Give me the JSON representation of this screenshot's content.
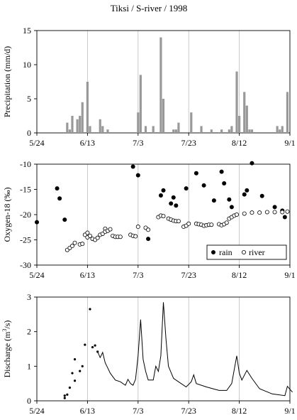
{
  "title": "Tiksi / S-river / 1998",
  "x_tick_labels": [
    "5/24",
    "6/13",
    "7/3",
    "7/23",
    "8/12",
    "9/1"
  ],
  "chart_data": [
    {
      "type": "bar",
      "ylabel": "Precipitation  (mm/d)",
      "ylim": [
        0,
        15
      ],
      "y_ticks": [
        "0",
        "5",
        "10",
        "15"
      ],
      "grid": "vertical",
      "x_start": "1998-05-24",
      "x_end": "1998-09-01",
      "bar_color": "#999999",
      "bars": [
        {
          "date": "1998-06-05",
          "value": 1.5
        },
        {
          "date": "1998-06-06",
          "value": 0.5
        },
        {
          "date": "1998-06-07",
          "value": 2.5
        },
        {
          "date": "1998-06-09",
          "value": 2.0
        },
        {
          "date": "1998-06-10",
          "value": 2.5
        },
        {
          "date": "1998-06-11",
          "value": 4.5
        },
        {
          "date": "1998-06-13",
          "value": 7.5
        },
        {
          "date": "1998-06-14",
          "value": 1.0
        },
        {
          "date": "1998-06-18",
          "value": 2.0
        },
        {
          "date": "1998-06-19",
          "value": 1.0
        },
        {
          "date": "1998-06-21",
          "value": 0.5
        },
        {
          "date": "1998-07-03",
          "value": 3.0
        },
        {
          "date": "1998-07-04",
          "value": 8.5
        },
        {
          "date": "1998-07-06",
          "value": 1.0
        },
        {
          "date": "1998-07-09",
          "value": 1.0
        },
        {
          "date": "1998-07-12",
          "value": 14.0
        },
        {
          "date": "1998-07-13",
          "value": 5.0
        },
        {
          "date": "1998-07-17",
          "value": 0.5
        },
        {
          "date": "1998-07-18",
          "value": 0.5
        },
        {
          "date": "1998-07-19",
          "value": 1.5
        },
        {
          "date": "1998-07-24",
          "value": 3.0
        },
        {
          "date": "1998-07-28",
          "value": 1.0
        },
        {
          "date": "1998-08-01",
          "value": 0.5
        },
        {
          "date": "1998-08-05",
          "value": 0.5
        },
        {
          "date": "1998-08-08",
          "value": 0.5
        },
        {
          "date": "1998-08-09",
          "value": 1.0
        },
        {
          "date": "1998-08-11",
          "value": 9.0
        },
        {
          "date": "1998-08-12",
          "value": 2.5
        },
        {
          "date": "1998-08-14",
          "value": 6.0
        },
        {
          "date": "1998-08-15",
          "value": 4.0
        },
        {
          "date": "1998-08-16",
          "value": 0.5
        },
        {
          "date": "1998-08-17",
          "value": 0.5
        },
        {
          "date": "1998-08-27",
          "value": 1.0
        },
        {
          "date": "1998-08-28",
          "value": 0.5
        },
        {
          "date": "1998-08-29",
          "value": 1.0
        },
        {
          "date": "1998-08-31",
          "value": 6.0
        }
      ]
    },
    {
      "type": "scatter",
      "ylabel": "Oxygen-18  (‰)",
      "ylim": [
        -30,
        -10
      ],
      "y_ticks": [
        "-10",
        "-15",
        "-20",
        "-25",
        "-30"
      ],
      "grid": "vertical",
      "legend_position": "bottom-right",
      "series": [
        {
          "name": "rain",
          "marker": "filled-circle",
          "points": [
            [
              "1998-05-24",
              -21.5
            ],
            [
              "1998-06-01",
              -14.8
            ],
            [
              "1998-06-02",
              -16.8
            ],
            [
              "1998-06-04",
              -21.0
            ],
            [
              "1998-07-01",
              -10.5
            ],
            [
              "1998-07-03",
              -12.2
            ],
            [
              "1998-07-07",
              -24.8
            ],
            [
              "1998-07-12",
              -16.2
            ],
            [
              "1998-07-13",
              -15.2
            ],
            [
              "1998-07-16",
              -17.8
            ],
            [
              "1998-07-17",
              -16.6
            ],
            [
              "1998-07-18",
              -18.2
            ],
            [
              "1998-07-22",
              -14.8
            ],
            [
              "1998-07-26",
              -11.8
            ],
            [
              "1998-07-29",
              -14.2
            ],
            [
              "1998-08-02",
              -17.2
            ],
            [
              "1998-08-05",
              -11.5
            ],
            [
              "1998-08-06",
              -13.8
            ],
            [
              "1998-08-08",
              -17.0
            ],
            [
              "1998-08-09",
              -18.5
            ],
            [
              "1998-08-14",
              -16.0
            ],
            [
              "1998-08-15",
              -15.2
            ],
            [
              "1998-08-17",
              -9.8
            ],
            [
              "1998-08-21",
              -16.3
            ],
            [
              "1998-08-26",
              -18.5
            ],
            [
              "1998-08-29",
              -19.2
            ],
            [
              "1998-08-30",
              -20.5
            ]
          ]
        },
        {
          "name": "river",
          "marker": "open-circle",
          "points": [
            [
              "1998-06-05",
              -27.0
            ],
            [
              "1998-06-06",
              -26.6
            ],
            [
              "1998-06-07",
              -26.2
            ],
            [
              "1998-06-08",
              -25.6
            ],
            [
              "1998-06-10",
              -25.9
            ],
            [
              "1998-06-11",
              -25.8
            ],
            [
              "1998-06-12",
              -24.0
            ],
            [
              "1998-06-13",
              -23.6
            ],
            [
              "1998-06-13",
              -24.5
            ],
            [
              "1998-06-14",
              -24.2
            ],
            [
              "1998-06-15",
              -24.8
            ],
            [
              "1998-06-16",
              -25.0
            ],
            [
              "1998-06-17",
              -24.6
            ],
            [
              "1998-06-18",
              -24.0
            ],
            [
              "1998-06-19",
              -23.8
            ],
            [
              "1998-06-20",
              -22.8
            ],
            [
              "1998-06-20",
              -23.4
            ],
            [
              "1998-06-21",
              -23.2
            ],
            [
              "1998-06-22",
              -22.9
            ],
            [
              "1998-06-23",
              -24.2
            ],
            [
              "1998-06-24",
              -24.4
            ],
            [
              "1998-06-25",
              -24.4
            ],
            [
              "1998-06-26",
              -24.4
            ],
            [
              "1998-06-30",
              -24.0
            ],
            [
              "1998-07-01",
              -24.2
            ],
            [
              "1998-07-02",
              -24.3
            ],
            [
              "1998-07-03",
              -22.4
            ],
            [
              "1998-07-06",
              -22.6
            ],
            [
              "1998-07-07",
              -23.0
            ],
            [
              "1998-07-11",
              -20.5
            ],
            [
              "1998-07-12",
              -20.2
            ],
            [
              "1998-07-13",
              -20.3
            ],
            [
              "1998-07-15",
              -20.8
            ],
            [
              "1998-07-16",
              -21.0
            ],
            [
              "1998-07-17",
              -21.2
            ],
            [
              "1998-07-18",
              -21.3
            ],
            [
              "1998-07-19",
              -21.3
            ],
            [
              "1998-07-21",
              -22.4
            ],
            [
              "1998-07-22",
              -22.2
            ],
            [
              "1998-07-23",
              -21.8
            ],
            [
              "1998-07-26",
              -21.8
            ],
            [
              "1998-07-27",
              -21.9
            ],
            [
              "1998-07-28",
              -22.0
            ],
            [
              "1998-07-29",
              -22.2
            ],
            [
              "1998-07-30",
              -22.1
            ],
            [
              "1998-07-31",
              -22.0
            ],
            [
              "1998-08-01",
              -22.0
            ],
            [
              "1998-08-04",
              -21.9
            ],
            [
              "1998-08-05",
              -22.1
            ],
            [
              "1998-08-06",
              -21.9
            ],
            [
              "1998-08-07",
              -21.6
            ],
            [
              "1998-08-08",
              -20.8
            ],
            [
              "1998-08-09",
              -20.5
            ],
            [
              "1998-08-10",
              -20.2
            ],
            [
              "1998-08-11",
              -20.0
            ],
            [
              "1998-08-14",
              -19.8
            ],
            [
              "1998-08-17",
              -19.6
            ],
            [
              "1998-08-20",
              -19.6
            ],
            [
              "1998-08-23",
              -19.5
            ],
            [
              "1998-08-26",
              -19.5
            ],
            [
              "1998-08-29",
              -19.5
            ],
            [
              "1998-08-31",
              -19.4
            ]
          ]
        }
      ]
    },
    {
      "type": "line",
      "ylabel": "Discharge  (m3/s)",
      "ylim": [
        0,
        3
      ],
      "y_ticks": [
        "0",
        "1",
        "2",
        "3"
      ],
      "grid": "vertical",
      "series": [
        {
          "name": "",
          "style": "dots",
          "points": [
            [
              "1998-06-04",
              0.08
            ],
            [
              "1998-06-04",
              0.15
            ],
            [
              "1998-06-05",
              0.18
            ],
            [
              "1998-06-06",
              0.38
            ],
            [
              "1998-06-07",
              0.8
            ],
            [
              "1998-06-08",
              0.58
            ],
            [
              "1998-06-08",
              1.2
            ],
            [
              "1998-06-10",
              0.86
            ],
            [
              "1998-06-11",
              1.0
            ],
            [
              "1998-06-12",
              1.62
            ],
            [
              "1998-06-14",
              2.65
            ],
            [
              "1998-06-15",
              1.55
            ],
            [
              "1998-06-16",
              1.6
            ],
            [
              "1998-06-17",
              1.42
            ]
          ]
        },
        {
          "name": "",
          "style": "line",
          "points": [
            [
              "1998-06-17",
              1.42
            ],
            [
              "1998-06-18",
              1.25
            ],
            [
              "1998-06-19",
              1.4
            ],
            [
              "1998-06-20",
              1.1
            ],
            [
              "1998-06-21",
              0.95
            ],
            [
              "1998-06-22",
              0.8
            ],
            [
              "1998-06-24",
              0.6
            ],
            [
              "1998-06-26",
              0.55
            ],
            [
              "1998-06-28",
              0.45
            ],
            [
              "1998-06-29",
              0.62
            ],
            [
              "1998-06-30",
              0.5
            ],
            [
              "1998-07-01",
              0.45
            ],
            [
              "1998-07-02",
              0.62
            ],
            [
              "1998-07-03",
              1.3
            ],
            [
              "1998-07-04",
              2.35
            ],
            [
              "1998-07-05",
              1.2
            ],
            [
              "1998-07-06",
              0.85
            ],
            [
              "1998-07-07",
              0.6
            ],
            [
              "1998-07-09",
              0.6
            ],
            [
              "1998-07-10",
              1.0
            ],
            [
              "1998-07-11",
              0.85
            ],
            [
              "1998-07-12",
              1.3
            ],
            [
              "1998-07-13",
              2.85
            ],
            [
              "1998-07-14",
              1.8
            ],
            [
              "1998-07-15",
              1.0
            ],
            [
              "1998-07-17",
              0.65
            ],
            [
              "1998-07-20",
              0.5
            ],
            [
              "1998-07-22",
              0.4
            ],
            [
              "1998-07-24",
              0.55
            ],
            [
              "1998-07-25",
              0.75
            ],
            [
              "1998-07-26",
              0.5
            ],
            [
              "1998-07-30",
              0.4
            ],
            [
              "1998-08-04",
              0.3
            ],
            [
              "1998-08-07",
              0.3
            ],
            [
              "1998-08-09",
              0.5
            ],
            [
              "1998-08-11",
              1.3
            ],
            [
              "1998-08-12",
              0.8
            ],
            [
              "1998-08-13",
              0.6
            ],
            [
              "1998-08-15",
              0.88
            ],
            [
              "1998-08-17",
              0.65
            ],
            [
              "1998-08-20",
              0.35
            ],
            [
              "1998-08-25",
              0.2
            ],
            [
              "1998-08-30",
              0.15
            ],
            [
              "1998-08-31",
              0.42
            ],
            [
              "1998-09-02",
              0.25
            ]
          ]
        }
      ]
    }
  ]
}
